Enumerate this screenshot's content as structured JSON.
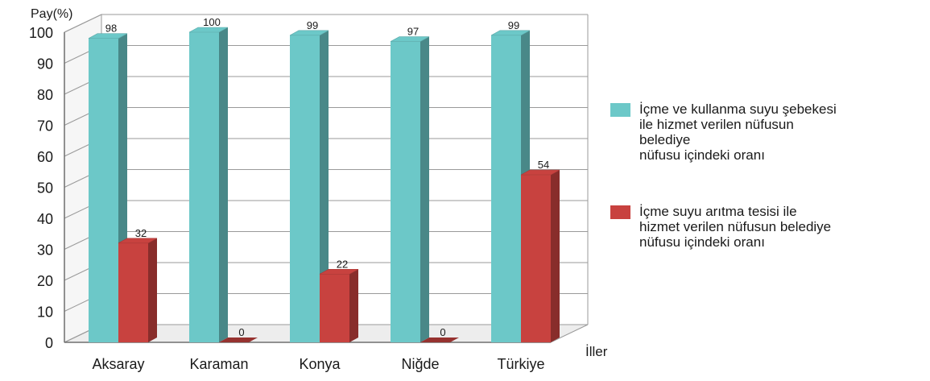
{
  "chart_data": {
    "type": "bar",
    "ylabel": "Pay(%)",
    "xlabel": "İller",
    "ylim": [
      0,
      100
    ],
    "yticks": [
      0,
      10,
      20,
      30,
      40,
      50,
      60,
      70,
      80,
      90,
      100
    ],
    "categories": [
      "Aksaray",
      "Karaman",
      "Konya",
      "Niğde",
      "Türkiye"
    ],
    "series": [
      {
        "name": "İçme ve kullanma suyu şebekesi ile hizmet verilen nüfusun belediye nüfusu içindeki oranı",
        "values": [
          98,
          100,
          99,
          97,
          99
        ],
        "color": "#6cc8c8"
      },
      {
        "name": "İçme suyu arıtma tesisi ile hizmet verilen nüfusun belediye nüfusu içindeki oranı",
        "values": [
          32,
          0,
          22,
          0,
          54
        ],
        "color": "#c8423f"
      }
    ],
    "grid": true,
    "legend_position": "right"
  },
  "legend": {
    "items": [
      {
        "label": "İçme ve kullanma suyu şebekesi\nile hizmet verilen nüfusun\nbelediye\nnüfusu içindeki oranı",
        "color": "#6cc8c8"
      },
      {
        "label": "İçme suyu arıtma tesisi ile\nhizmet verilen nüfusun belediye\nnüfusu içindeki oranı",
        "color": "#c8423f"
      }
    ]
  }
}
